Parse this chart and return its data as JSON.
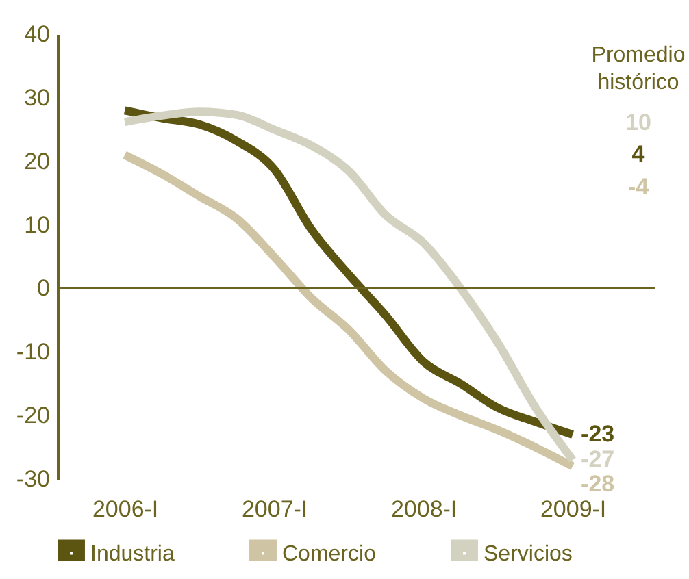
{
  "chart_data": {
    "type": "line",
    "categories": [
      "2006-I",
      null,
      null,
      null,
      "2007-I",
      null,
      null,
      null,
      "2008-I",
      null,
      null,
      null,
      "2009-I"
    ],
    "series": [
      {
        "name": "Industria",
        "color": "#5c5512",
        "values": [
          28,
          26.8,
          25.8,
          23.2,
          18.8,
          9.3,
          2.2,
          -4.3,
          -11.5,
          -15,
          -18.8,
          -21,
          -23
        ],
        "value_labels": [
          null,
          null,
          null,
          null,
          null,
          null,
          null,
          null,
          null,
          null,
          null,
          null,
          "-23"
        ]
      },
      {
        "name": "Comercio",
        "color": "#cfc4a4",
        "values": [
          21,
          18,
          14.5,
          11,
          5,
          -1.5,
          -6.5,
          -13,
          -17.3,
          -20,
          -22.3,
          -25,
          -28
        ],
        "value_labels": [
          null,
          null,
          null,
          null,
          null,
          null,
          null,
          null,
          null,
          null,
          null,
          null,
          "-28"
        ]
      },
      {
        "name": "Servicios",
        "color": "#d3d1bf",
        "values": [
          26.2,
          27.2,
          27.8,
          27.3,
          25,
          22.5,
          18.5,
          11.5,
          7.2,
          0,
          -8.6,
          -18.7,
          -27
        ],
        "value_labels": [
          null,
          null,
          null,
          null,
          null,
          null,
          null,
          null,
          null,
          null,
          null,
          null,
          "-27"
        ]
      }
    ],
    "ylim": [
      -30,
      40
    ],
    "yticks": [
      -30,
      -20,
      -10,
      0,
      10,
      20,
      30,
      40
    ],
    "ref_lines": [
      {
        "axis": "y",
        "value": 0,
        "label": null
      }
    ],
    "annotations": [
      "Promedio\nhistórico",
      "10",
      "4",
      "-4"
    ],
    "grid": false,
    "legend": "bottom",
    "marker": "none",
    "line_style": "solid"
  }
}
